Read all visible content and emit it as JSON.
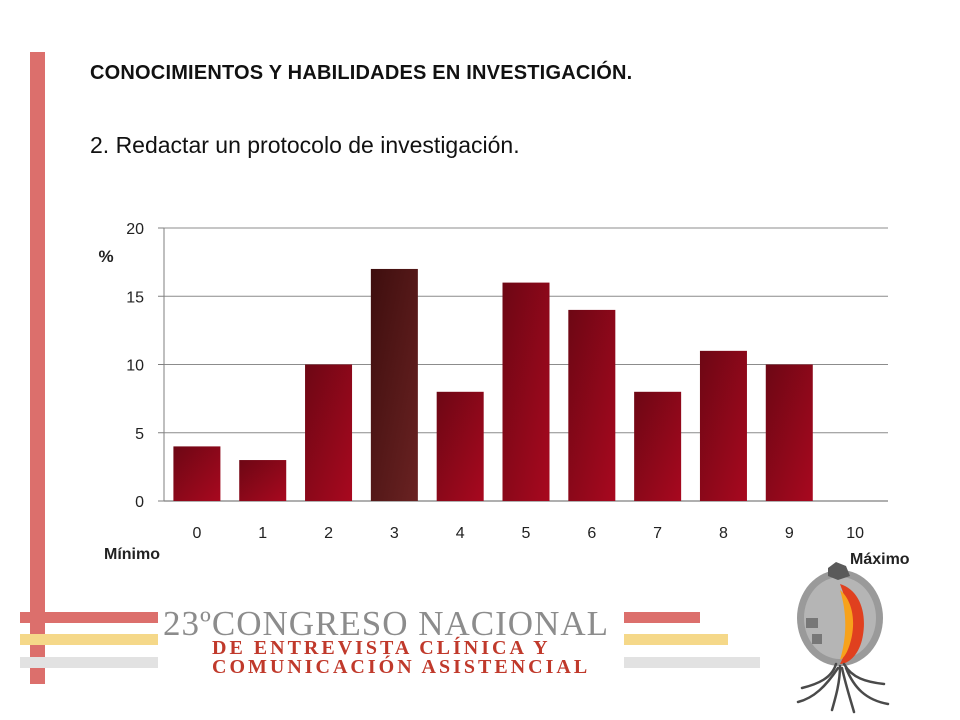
{
  "slide": {
    "title": "CONOCIMIENTOS Y HABILIDADES EN INVESTIGACIÓN.",
    "subtitle": "2. Redactar un protocolo de investigación.",
    "label_min": "Mínimo",
    "label_max": "Máximo"
  },
  "chart_data": {
    "type": "bar",
    "categories": [
      "0",
      "1",
      "2",
      "3",
      "4",
      "5",
      "6",
      "7",
      "8",
      "9",
      "10"
    ],
    "values": [
      4,
      3,
      10,
      17,
      8,
      16,
      14,
      8,
      11,
      10,
      0
    ],
    "ylabel": "%",
    "ylim": [
      0,
      20
    ],
    "yticks": [
      0,
      5,
      10,
      15,
      20
    ],
    "grid": true,
    "bar_color": "#9b0a1e",
    "highlight_color": "#5a1a1a"
  },
  "logo": {
    "line1": "23ºCONGRESO NACIONAL",
    "line2": "DE ENTREVISTA CLÍNICA Y",
    "line3": "COMUNICACIÓN ASISTENCIAL"
  },
  "colors": {
    "accent_red": "#dc6f6c",
    "accent_yellow": "#f5d889",
    "accent_gray": "#e2e2e2"
  }
}
